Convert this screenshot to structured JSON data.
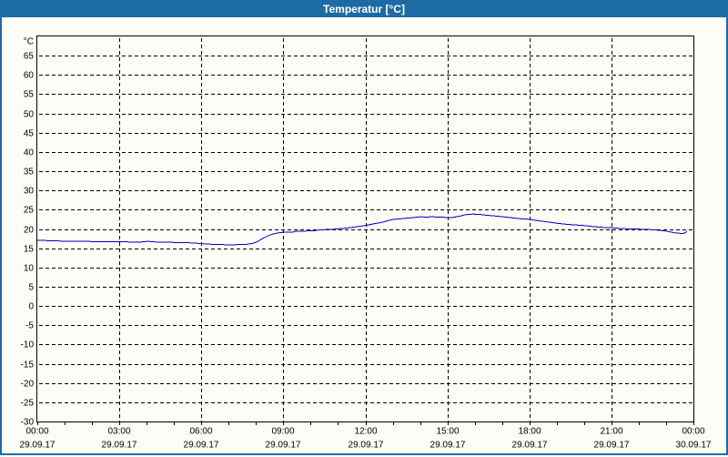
{
  "window": {
    "title": "Temperatur [°C]"
  },
  "colors": {
    "titlebar_bg": "#1d6ba5",
    "window_border": "#1d6ba5",
    "background": "#fdfdf7",
    "grid": "#000000",
    "axis": "#000000",
    "line": "#0000c0",
    "title_text": "#ffffff",
    "label_text": "#000000"
  },
  "chart_data": {
    "type": "line",
    "title": "Temperatur [°C]",
    "ylabel": "°C",
    "ylim": [
      -30,
      70
    ],
    "yticks_min": -30,
    "yticks_max": 65,
    "ytick_step": 5,
    "xlim_hours": [
      0,
      24
    ],
    "minor_tick_hours": 1,
    "grid": true,
    "legend": false,
    "xticks": [
      {
        "hour": 0,
        "time": "00:00",
        "date": "29.09.17"
      },
      {
        "hour": 3,
        "time": "03:00",
        "date": "29.09.17"
      },
      {
        "hour": 6,
        "time": "06:00",
        "date": "29.09.17"
      },
      {
        "hour": 9,
        "time": "09:00",
        "date": "29.09.17"
      },
      {
        "hour": 12,
        "time": "12:00",
        "date": "29.09.17"
      },
      {
        "hour": 15,
        "time": "15:00",
        "date": "29.09.17"
      },
      {
        "hour": 18,
        "time": "18:00",
        "date": "29.09.17"
      },
      {
        "hour": 21,
        "time": "21:00",
        "date": "29.09.17"
      },
      {
        "hour": 24,
        "time": "00:00",
        "date": "30.09.17"
      }
    ],
    "series": [
      {
        "name": "Temperatur",
        "color": "#0000c0",
        "points": [
          [
            0,
            17.0
          ],
          [
            0.3,
            17.0
          ],
          [
            0.55,
            16.9
          ],
          [
            0.9,
            16.85
          ],
          [
            1.3,
            16.8
          ],
          [
            1.8,
            16.75
          ],
          [
            2.3,
            16.72
          ],
          [
            2.8,
            16.7
          ],
          [
            3.2,
            16.65
          ],
          [
            3.6,
            16.6
          ],
          [
            3.9,
            16.65
          ],
          [
            4.05,
            16.8
          ],
          [
            4.2,
            16.65
          ],
          [
            4.6,
            16.6
          ],
          [
            5.0,
            16.5
          ],
          [
            5.4,
            16.45
          ],
          [
            5.7,
            16.35
          ],
          [
            6.0,
            16.2
          ],
          [
            6.3,
            16.05
          ],
          [
            6.6,
            15.95
          ],
          [
            6.9,
            15.9
          ],
          [
            7.2,
            15.9
          ],
          [
            7.5,
            15.95
          ],
          [
            7.7,
            16.05
          ],
          [
            7.9,
            16.3
          ],
          [
            8.05,
            16.7
          ],
          [
            8.2,
            17.35
          ],
          [
            8.4,
            18.1
          ],
          [
            8.6,
            18.65
          ],
          [
            8.8,
            18.95
          ],
          [
            9.0,
            19.15
          ],
          [
            9.35,
            19.2
          ],
          [
            9.45,
            19.35
          ],
          [
            9.8,
            19.45
          ],
          [
            10.15,
            19.55
          ],
          [
            10.3,
            19.75
          ],
          [
            10.6,
            19.85
          ],
          [
            10.9,
            19.95
          ],
          [
            11.1,
            20.1
          ],
          [
            11.4,
            20.3
          ],
          [
            11.7,
            20.6
          ],
          [
            12.0,
            20.9
          ],
          [
            12.35,
            21.4
          ],
          [
            12.6,
            21.7
          ],
          [
            13.0,
            22.45
          ],
          [
            13.35,
            22.7
          ],
          [
            13.7,
            22.9
          ],
          [
            14.05,
            23.2
          ],
          [
            14.25,
            23.0
          ],
          [
            14.4,
            23.2
          ],
          [
            14.7,
            23.05
          ],
          [
            14.95,
            23.0
          ],
          [
            15.2,
            23.0
          ],
          [
            15.45,
            23.3
          ],
          [
            15.6,
            23.6
          ],
          [
            15.75,
            23.8
          ],
          [
            15.95,
            23.85
          ],
          [
            16.2,
            23.75
          ],
          [
            16.45,
            23.55
          ],
          [
            16.7,
            23.4
          ],
          [
            17.0,
            23.2
          ],
          [
            17.3,
            22.95
          ],
          [
            17.6,
            22.7
          ],
          [
            18.0,
            22.5
          ],
          [
            18.35,
            22.1
          ],
          [
            18.7,
            21.8
          ],
          [
            19.0,
            21.5
          ],
          [
            19.3,
            21.25
          ],
          [
            19.7,
            21.05
          ],
          [
            20.0,
            20.9
          ],
          [
            20.3,
            20.65
          ],
          [
            20.7,
            20.4
          ],
          [
            21.0,
            20.3
          ],
          [
            21.4,
            20.1
          ],
          [
            21.7,
            20.0
          ],
          [
            22.0,
            19.95
          ],
          [
            22.35,
            19.85
          ],
          [
            22.7,
            19.7
          ],
          [
            23.0,
            19.45
          ],
          [
            23.2,
            19.15
          ],
          [
            23.35,
            18.95
          ],
          [
            23.55,
            18.85
          ],
          [
            23.67,
            18.9
          ],
          [
            23.77,
            19.35
          ]
        ]
      }
    ]
  }
}
